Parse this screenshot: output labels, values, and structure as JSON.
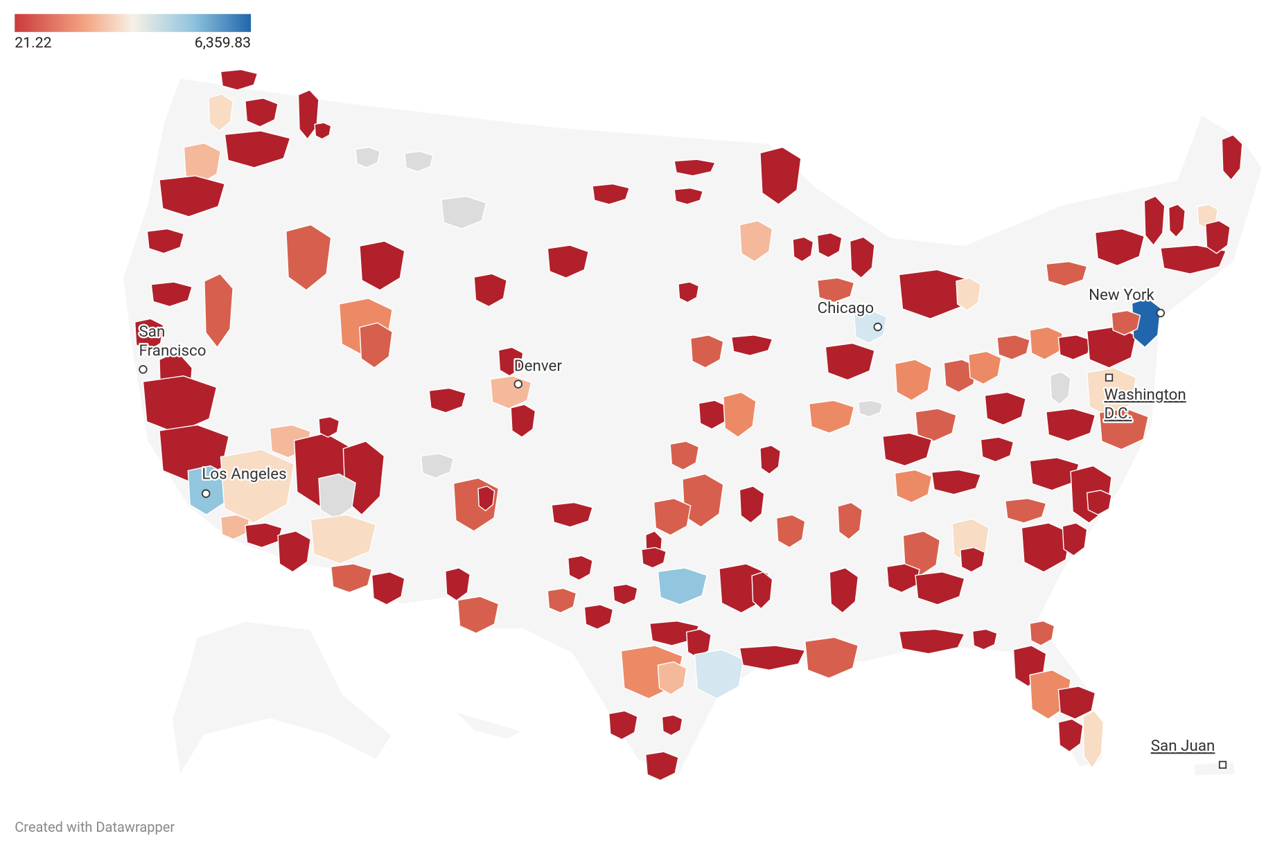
{
  "legend": {
    "min": "21.22",
    "max": "6,359.83"
  },
  "cities": [
    {
      "lines": [
        "San",
        "Francisco"
      ]
    },
    {
      "lines": [
        "Los Angeles"
      ]
    },
    {
      "lines": [
        "Denver"
      ]
    },
    {
      "lines": [
        "Chicago"
      ]
    },
    {
      "lines": [
        "New York"
      ]
    },
    {
      "lines": [
        "Washington",
        "D.C."
      ]
    },
    {
      "lines": [
        "San Juan"
      ]
    }
  ],
  "footer": "Created with Datawrapper"
}
